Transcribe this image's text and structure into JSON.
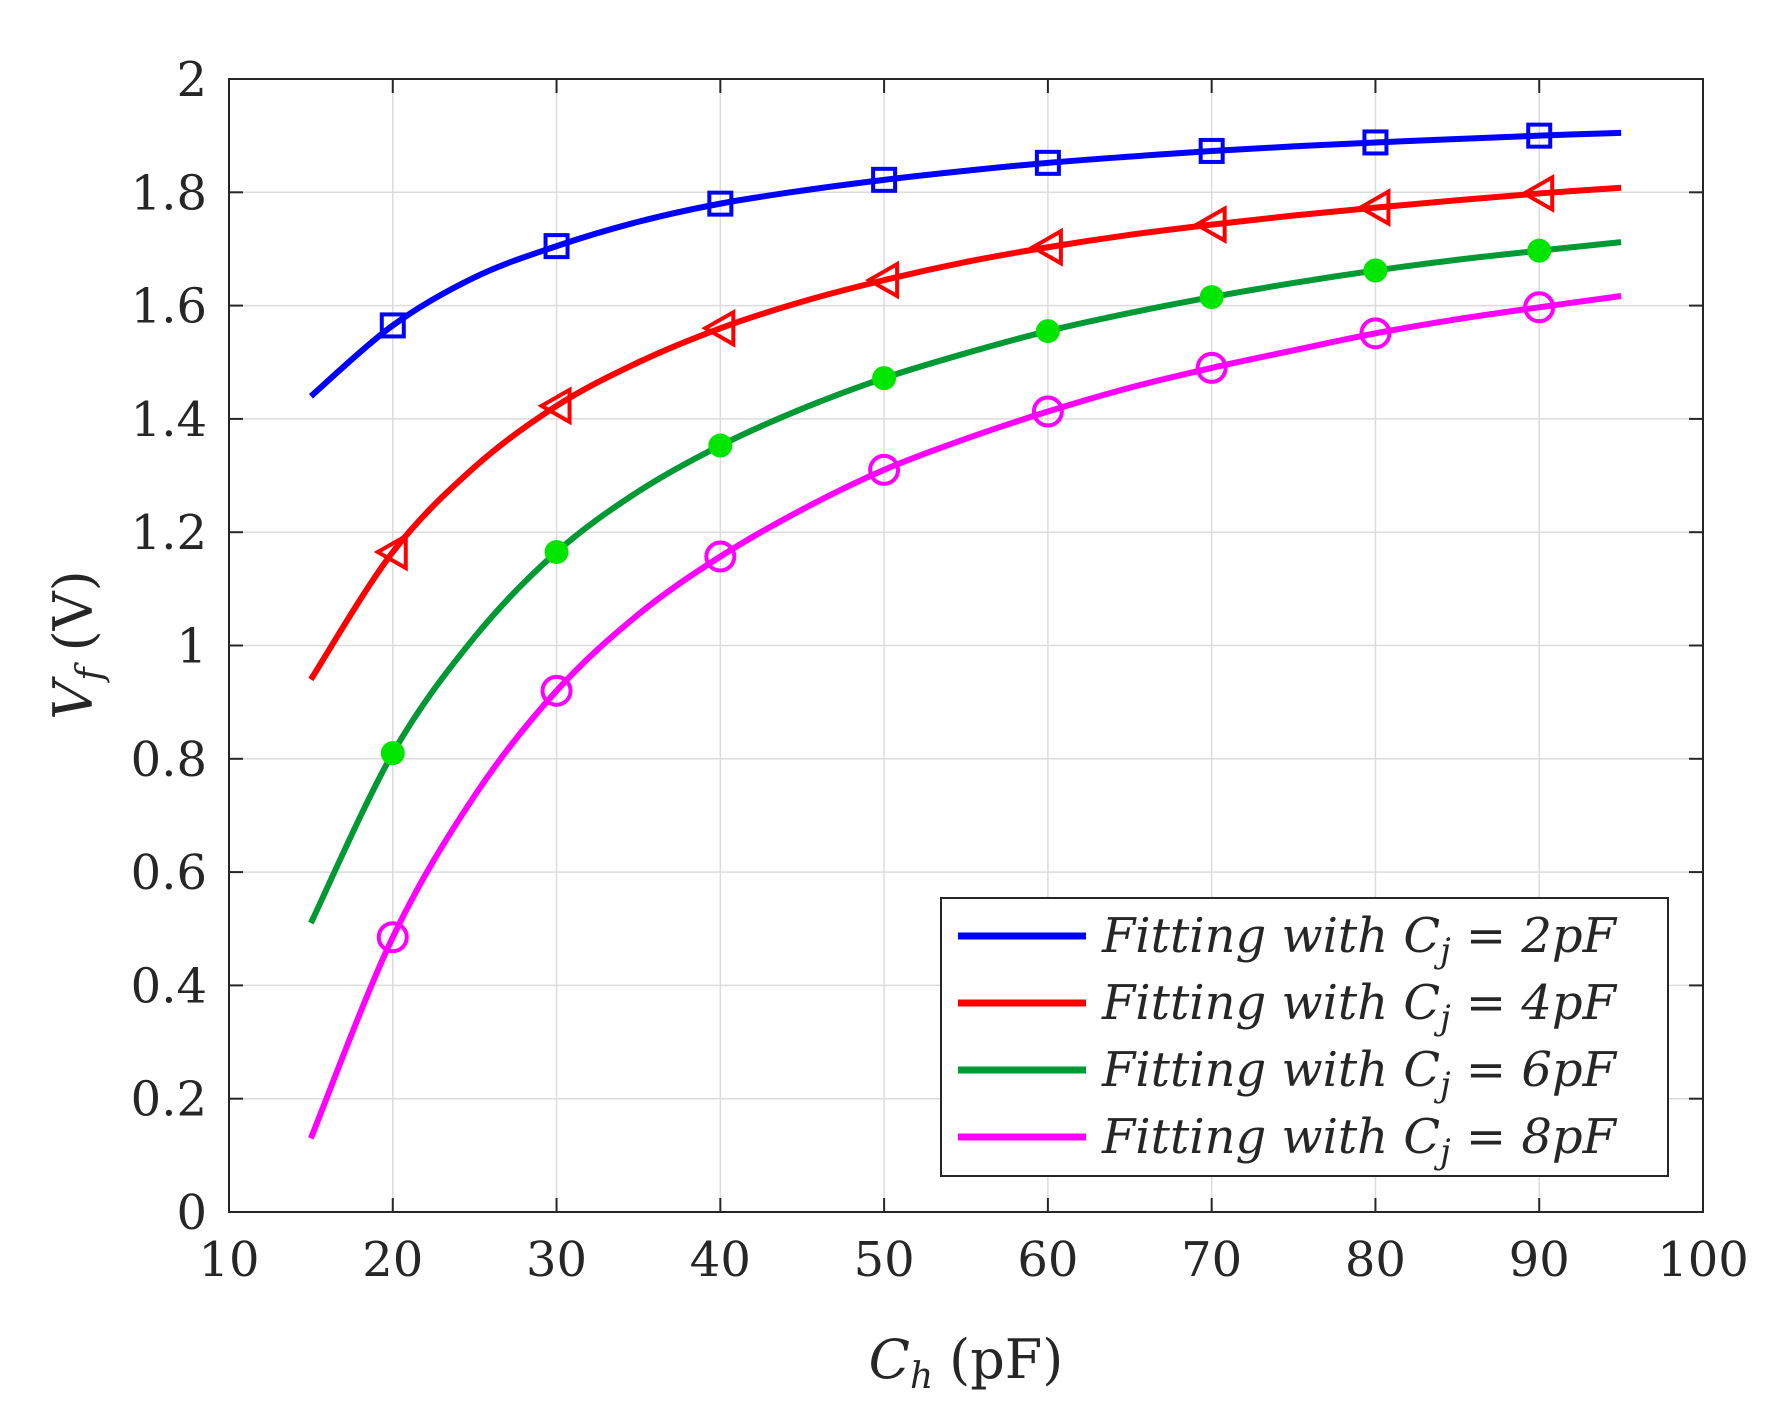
{
  "chart_data": {
    "type": "line",
    "xlabel": "C_h (pF)",
    "xlabel_main": "C",
    "xlabel_sub": "h",
    "xlabel_unit": "(pF)",
    "ylabel": "V_f (V)",
    "ylabel_main": "V",
    "ylabel_sub": "f",
    "ylabel_unit": "(V)",
    "xlim": [
      10,
      100
    ],
    "ylim": [
      0,
      2
    ],
    "xticks": [
      10,
      20,
      30,
      40,
      50,
      60,
      70,
      80,
      90,
      100
    ],
    "yticks": [
      0,
      0.2,
      0.4,
      0.6,
      0.8,
      1,
      1.2,
      1.4,
      1.6,
      1.8,
      2
    ],
    "xtick_labels": [
      "10",
      "20",
      "30",
      "40",
      "50",
      "60",
      "70",
      "80",
      "90",
      "100"
    ],
    "ytick_labels": [
      "0",
      "0.2",
      "0.4",
      "0.6",
      "0.8",
      "1",
      "1.2",
      "1.4",
      "1.6",
      "1.8",
      "2"
    ],
    "grid": true,
    "legend_position": "bottom-right",
    "series": [
      {
        "name": "Fitting with C_j = 2pF",
        "legend_label": "Fitting with Cj = 2pF",
        "legend_prefix": "Fitting with C",
        "legend_sub": "j",
        "legend_suffix": " = 2pF",
        "color": "#0000ff",
        "marker": "square",
        "marker_fill": false,
        "curve_x": [
          15,
          20,
          25,
          30,
          35,
          40,
          45,
          50,
          55,
          60,
          65,
          70,
          75,
          80,
          85,
          90,
          95
        ],
        "curve_y": [
          1.44,
          1.565,
          1.65,
          1.705,
          1.748,
          1.78,
          1.803,
          1.822,
          1.838,
          1.852,
          1.863,
          1.873,
          1.881,
          1.888,
          1.894,
          1.9,
          1.905
        ],
        "marker_x": [
          20,
          30,
          40,
          50,
          60,
          70,
          80,
          90
        ],
        "marker_y": [
          1.565,
          1.705,
          1.78,
          1.822,
          1.852,
          1.873,
          1.888,
          1.9
        ]
      },
      {
        "name": "Fitting with C_j = 4pF",
        "legend_label": "Fitting with Cj = 4pF",
        "legend_prefix": "Fitting with C",
        "legend_sub": "j",
        "legend_suffix": " = 4pF",
        "color": "#ff0000",
        "marker": "triangle-left",
        "marker_fill": false,
        "curve_x": [
          15,
          20,
          25,
          30,
          35,
          40,
          45,
          50,
          55,
          60,
          65,
          70,
          75,
          80,
          85,
          90,
          95
        ],
        "curve_y": [
          0.94,
          1.165,
          1.315,
          1.423,
          1.5,
          1.56,
          1.607,
          1.645,
          1.677,
          1.703,
          1.725,
          1.743,
          1.759,
          1.773,
          1.786,
          1.798,
          1.808
        ],
        "marker_x": [
          20,
          30,
          40,
          50,
          60,
          70,
          80,
          90
        ],
        "marker_y": [
          1.165,
          1.423,
          1.56,
          1.645,
          1.703,
          1.743,
          1.773,
          1.798
        ]
      },
      {
        "name": "Fitting with C_j = 6pF",
        "legend_label": "Fitting with Cj = 6pF",
        "legend_prefix": "Fitting with C",
        "legend_sub": "j",
        "legend_suffix": " = 6pF",
        "color": "#009933",
        "marker": "circle",
        "marker_fill": true,
        "marker_color": "#00e600",
        "curve_x": [
          15,
          20,
          25,
          30,
          35,
          40,
          45,
          50,
          55,
          60,
          65,
          70,
          75,
          80,
          85,
          90,
          95
        ],
        "curve_y": [
          0.51,
          0.81,
          1.015,
          1.165,
          1.272,
          1.353,
          1.418,
          1.472,
          1.516,
          1.555,
          1.587,
          1.615,
          1.64,
          1.662,
          1.681,
          1.697,
          1.712
        ],
        "marker_x": [
          20,
          30,
          40,
          50,
          60,
          70,
          80,
          90
        ],
        "marker_y": [
          0.81,
          1.165,
          1.353,
          1.472,
          1.555,
          1.615,
          1.662,
          1.697
        ]
      },
      {
        "name": "Fitting with C_j = 8pF",
        "legend_label": "Fitting with Cj = 8pF",
        "legend_prefix": "Fitting with C",
        "legend_sub": "j",
        "legend_suffix": " = 8pF",
        "color": "#ff00ff",
        "marker": "circle",
        "marker_fill": false,
        "curve_x": [
          15,
          20,
          25,
          30,
          35,
          40,
          45,
          50,
          55,
          60,
          65,
          70,
          75,
          80,
          85,
          90,
          95
        ],
        "curve_y": [
          0.13,
          0.485,
          0.735,
          0.92,
          1.055,
          1.157,
          1.24,
          1.31,
          1.365,
          1.413,
          1.455,
          1.49,
          1.521,
          1.551,
          1.576,
          1.597,
          1.617
        ],
        "marker_x": [
          20,
          30,
          40,
          50,
          60,
          70,
          80,
          90
        ],
        "marker_y": [
          0.485,
          0.92,
          1.157,
          1.31,
          1.413,
          1.49,
          1.551,
          1.597
        ]
      }
    ]
  }
}
